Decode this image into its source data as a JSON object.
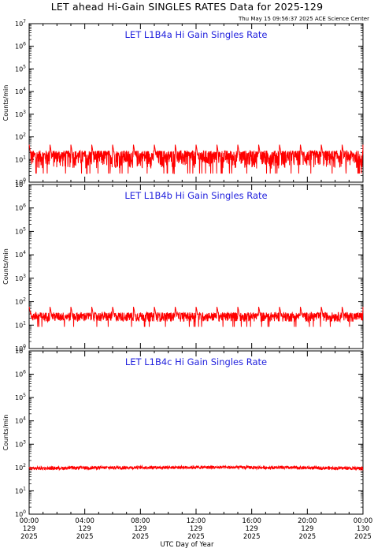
{
  "title": "LET ahead Hi-Gain SINGLES RATES Data for 2025-129",
  "timestamp": "Thu May 15 09:56:37 2025 ACE Science Center",
  "x_axis_title": "UTC Day of Year",
  "colors": {
    "trace": "#ff0000",
    "panel_label": "#2222dd",
    "axes": "#000000"
  },
  "chart_data": [
    {
      "type": "line",
      "panel_label": "LET L1B4a Hi Gain Singles Rate",
      "ylabel": "Counts/min",
      "y_scale": "log",
      "ylim": [
        1,
        10000000
      ],
      "xlim_hours": [
        0,
        24
      ],
      "baseline": 10,
      "noise_range": [
        4,
        25
      ],
      "spike_every_hours": 1.5,
      "spike_peak": 45,
      "series_color": "#ff0000"
    },
    {
      "type": "line",
      "panel_label": "LET L1B4b Hi Gain Singles Rate",
      "ylabel": "Counts/min",
      "y_scale": "log",
      "ylim": [
        1,
        10000000
      ],
      "xlim_hours": [
        0,
        24
      ],
      "baseline": 22,
      "noise_range": [
        14,
        35
      ],
      "spike_every_hours": 1.5,
      "spike_peak": 60,
      "series_color": "#ff0000"
    },
    {
      "type": "line",
      "panel_label": "LET L1B4c Hi Gain Singles Rate",
      "ylabel": "Counts/min",
      "y_scale": "log",
      "ylim": [
        1,
        10000000
      ],
      "xlim_hours": [
        0,
        24
      ],
      "baseline": 90,
      "noise_range": [
        70,
        130
      ],
      "spike_every_hours": 0,
      "spike_peak": 0,
      "series_color": "#ff0000"
    }
  ],
  "y_tick_labels": [
    "10^0",
    "10^1",
    "10^2",
    "10^3",
    "10^4",
    "10^5",
    "10^6",
    "10^7"
  ],
  "x_ticks": [
    {
      "time": "00:00",
      "day": "129",
      "year": "2025"
    },
    {
      "time": "04:00",
      "day": "129",
      "year": "2025"
    },
    {
      "time": "08:00",
      "day": "129",
      "year": "2025"
    },
    {
      "time": "12:00",
      "day": "129",
      "year": "2025"
    },
    {
      "time": "16:00",
      "day": "129",
      "year": "2025"
    },
    {
      "time": "20:00",
      "day": "129",
      "year": "2025"
    },
    {
      "time": "00:00",
      "day": "130",
      "year": "2025"
    }
  ]
}
